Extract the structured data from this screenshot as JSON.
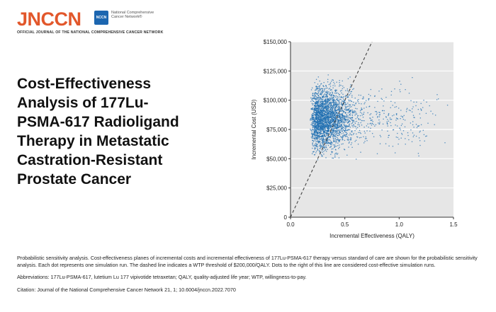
{
  "header": {
    "logo_text": "JNCCN",
    "logo_badge": "NCCN",
    "logo_org": "National Comprehensive Cancer Network®",
    "tagline": "OFFICIAL JOURNAL OF THE NATIONAL COMPREHENSIVE CANCER NETWORK",
    "brand_color": "#e2572b",
    "badge_color": "#1c66b0"
  },
  "title_lines": [
    "Cost-Effectiveness",
    "Analysis of 177Lu-",
    "PSMA-617 Radioligand",
    "Therapy in Metastatic",
    "Castration-Resistant",
    "Prostate Cancer"
  ],
  "chart_data": {
    "type": "scatter",
    "xlabel": "Incremental Effectiveness (QALY)",
    "ylabel": "Incremental Cost (USD)",
    "xlim": [
      0,
      1.5
    ],
    "ylim": [
      0,
      150000
    ],
    "x_ticks": [
      0,
      0.5,
      1,
      1.5
    ],
    "x_tick_labels": [
      "0.0",
      "0.5",
      "1.0",
      "1.5"
    ],
    "y_ticks": [
      0,
      25000,
      50000,
      75000,
      100000,
      125000,
      150000
    ],
    "y_tick_labels": [
      "0",
      "$25,000",
      "$50,000",
      "$75,000",
      "$100,000",
      "$125,000",
      "$150,000"
    ],
    "grid": "horizontal",
    "plot_background": "#e6e6e6",
    "point_color": "#1f6fb2",
    "wtp_threshold_line": {
      "slope_usd_per_qaly": 200000,
      "style": "dashed",
      "color": "#444444"
    },
    "point_cloud_summary": {
      "x_range": [
        0.18,
        1.5
      ],
      "y_range": [
        40000,
        120000
      ],
      "densest_region": {
        "x": [
          0.2,
          0.5
        ],
        "y": [
          65000,
          100000
        ]
      }
    }
  },
  "caption": {
    "description": "Probabilistic sensitivity analysis. Cost-effectiveness planes of incremental costs and incremental effectiveness of 177Lu-PSMA-617 therapy versus standard of care are shown for the probabilistic sensitivity analysis. Each dot represents one simulation run. The dashed line indicates a WTP threshold of $200,000/QALY. Dots to the right of this line are considered cost-effective simulation runs.",
    "abbreviations": "Abbreviations: 177Lu-PSMA-617, lutetium Lu 177 vipivotide tetraxetan; QALY, quality-adjusted life year; WTP, willingness-to-pay.",
    "citation": "Citation: Journal of the National Comprehensive Cancer Network 21, 1; 10.6004/jnccn.2022.7070"
  }
}
